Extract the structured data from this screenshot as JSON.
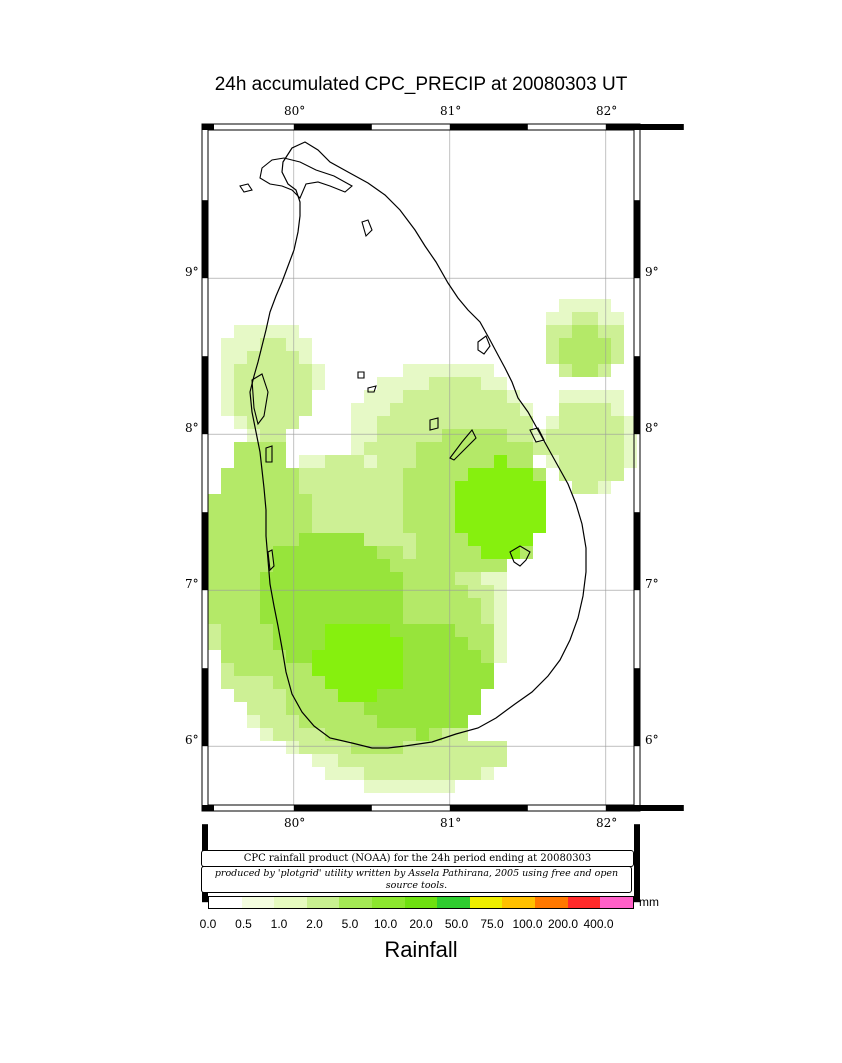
{
  "title": "24h accumulated CPC_PRECIP  at 20080303 UT",
  "axes": {
    "lon_labels": [
      "80°",
      "81°",
      "82°"
    ],
    "lat_labels": [
      "9°",
      "8°",
      "7°",
      "6°"
    ]
  },
  "credits": {
    "line1": "CPC rainfall product (NOAA) for the 24h period ending at 20080303",
    "line2": "produced by 'plotgrid' utility written by Assela Pathirana, 2005 using free and open source tools."
  },
  "legend": {
    "unit": "mm",
    "title": "Rainfall",
    "labels": [
      "0.0",
      "0.5",
      "1.0",
      "2.0",
      "5.0",
      "10.0",
      "20.0",
      "50.0",
      "75.0",
      "100.0",
      "200.0",
      "400.0"
    ],
    "colors": [
      "#ffffff",
      "#f4fddf",
      "#e6fbbf",
      "#c8f090",
      "#a4e955",
      "#8ce62e",
      "#6ee010",
      "#2ecc2e",
      "#eeee00",
      "#ffc000",
      "#ff7800",
      "#ff2a2a",
      "#ff60c8"
    ]
  },
  "rainfall_field": {
    "units": "mm",
    "colors": {
      "light": "#e6f9c6",
      "pale": "#cdf095",
      "mid": "#b4e968",
      "strong": "#97e43b",
      "bright": "#86f00e"
    }
  }
}
